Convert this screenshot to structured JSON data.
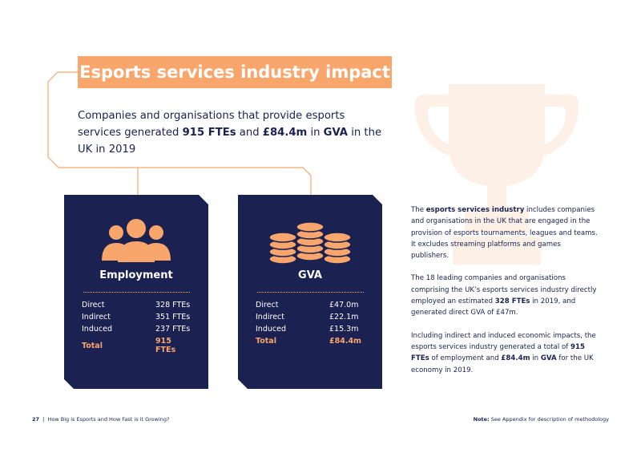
{
  "header": {
    "title": "Esports services industry impact"
  },
  "intro": [
    {
      "text": "Companies and organisations that provide esports services generated "
    },
    {
      "text": "915 FTEs",
      "bold": true
    },
    {
      "text": " and "
    },
    {
      "text": "£84.4m",
      "bold": true
    },
    {
      "text": " in "
    },
    {
      "text": "GVA",
      "bold": true
    },
    {
      "text": " in the UK in 2019"
    }
  ],
  "cards": [
    {
      "title": "Employment",
      "rows": [
        [
          "Direct",
          "328 FTEs"
        ],
        [
          "Indirect",
          "351 FTEs"
        ],
        [
          "Induced",
          "237 FTEs"
        ]
      ],
      "total": [
        "Total",
        "915 FTEs"
      ]
    },
    {
      "title": "GVA",
      "rows": [
        [
          "Direct",
          "£47.0m"
        ],
        [
          "Indirect",
          "£22.1m"
        ],
        [
          "Induced",
          "£15.3m"
        ]
      ],
      "total": [
        "Total",
        "£84.4m"
      ]
    }
  ],
  "paragraphs": [
    [
      {
        "text": "The "
      },
      {
        "text": "esports services industry",
        "bold": true
      },
      {
        "text": " includes companies and organisations in the UK that are engaged in the provision of esports tournaments, leagues and teams. It excludes streaming platforms and games publishers."
      }
    ],
    [
      {
        "text": "The 18 leading companies and organisations comprising the UK’s esports services industry directly employed an estimated "
      },
      {
        "text": "328 FTEs",
        "bold": true
      },
      {
        "text": " in 2019, and generated direct GVA of £47m."
      }
    ],
    [
      {
        "text": "Including indirect and induced economic impacts, the esports services industry generated a total of "
      },
      {
        "text": "915 FTEs",
        "bold": true
      },
      {
        "text": " of employment and "
      },
      {
        "text": "£84.4m",
        "bold": true
      },
      {
        "text": " in "
      },
      {
        "text": "GVA",
        "bold": true
      },
      {
        "text": " for the UK economy in 2019."
      }
    ]
  ],
  "footer": {
    "page": "27",
    "title": "How Big is Esports and How Fast is it Growing?",
    "note_label": "Note:",
    "note": "See Appendix for description of methodology"
  }
}
